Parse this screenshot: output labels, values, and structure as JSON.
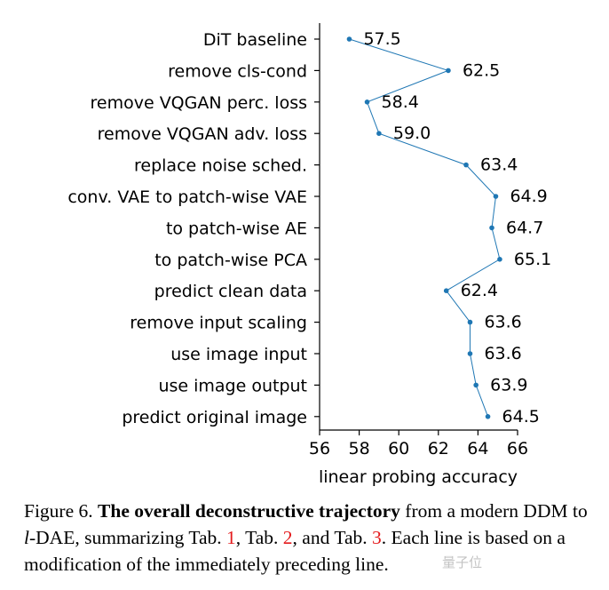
{
  "chart_data": {
    "type": "line",
    "orientation": "horizontal",
    "categories": [
      "DiT baseline",
      "remove cls-cond",
      "remove VQGAN perc. loss",
      "remove VQGAN adv. loss",
      "replace noise sched.",
      "conv. VAE to patch-wise VAE",
      "to patch-wise AE",
      "to patch-wise PCA",
      "predict clean data",
      "remove input scaling",
      "use image input",
      "use image output",
      "predict original image"
    ],
    "values": [
      57.5,
      62.5,
      58.4,
      59.0,
      63.4,
      64.9,
      64.7,
      65.1,
      62.4,
      63.6,
      63.6,
      63.9,
      64.5
    ],
    "value_labels": [
      "57.5",
      "62.5",
      "58.4",
      "59.0",
      "63.4",
      "64.9",
      "64.7",
      "65.1",
      "62.4",
      "63.6",
      "63.6",
      "63.9",
      "64.5"
    ],
    "xlabel": "linear probing accuracy",
    "xlim": [
      56,
      66
    ],
    "xticks": [
      "56",
      "58",
      "60",
      "62",
      "64",
      "66"
    ],
    "grid": false,
    "series_color": "#1f77b4"
  },
  "caption": {
    "prefix": "Figure 6. ",
    "bold": "The overall deconstructive trajectory",
    "text1": " from a modern DDM to ",
    "italic": "l",
    "text2": "-DAE, summarizing Tab. ",
    "ref1": "1",
    "text3": ", Tab. ",
    "ref2": "2",
    "text4": ", and Tab. ",
    "ref3": "3",
    "text5": ". Each line is based on a modification of the immediately preceding line."
  },
  "watermark": "量子位"
}
